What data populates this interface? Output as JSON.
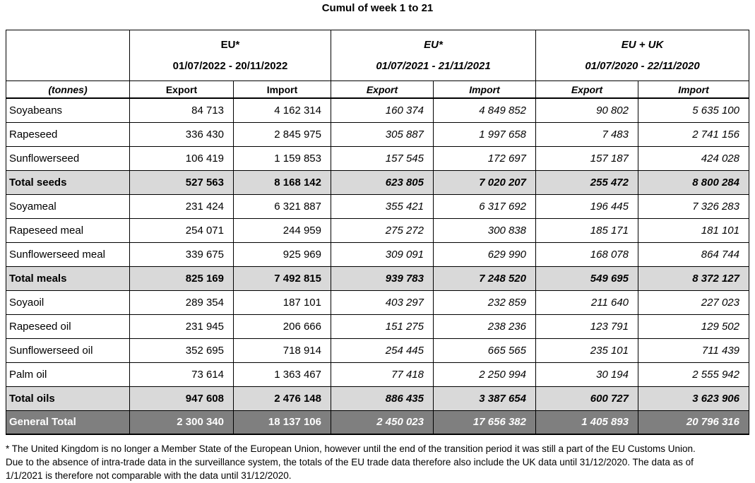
{
  "title": "Cumul of week 1 to 21",
  "unit_label": "(tonnes)",
  "colors": {
    "subtotal_row_bg": "#d9d9d9",
    "grand_total_row_bg": "#7f7f7f",
    "grand_total_text": "#ffffff",
    "border": "#000000"
  },
  "table": {
    "groups": [
      {
        "name": "EU*",
        "period": "01/07/2022 - 20/11/2022"
      },
      {
        "name": "EU*",
        "period": "01/07/2021 - 21/11/2021"
      },
      {
        "name": "EU + UK",
        "period": "01/07/2020 - 22/11/2020"
      }
    ],
    "col_headers": [
      "Export",
      "Import"
    ],
    "rows": [
      {
        "label": "Soyabeans",
        "type": "data",
        "values": [
          "84 713",
          "4 162 314",
          "160 374",
          "4 849 852",
          "90 802",
          "5 635 100"
        ]
      },
      {
        "label": "Rapeseed",
        "type": "data",
        "values": [
          "336 430",
          "2 845 975",
          "305 887",
          "1 997 658",
          "7 483",
          "2 741 156"
        ]
      },
      {
        "label": "Sunflowerseed",
        "type": "data",
        "values": [
          "106 419",
          "1 159 853",
          "157 545",
          "172 697",
          "157 187",
          "424 028"
        ]
      },
      {
        "label": "Total seeds",
        "type": "subtotal",
        "values": [
          "527 563",
          "8 168 142",
          "623 805",
          "7 020 207",
          "255 472",
          "8 800 284"
        ]
      },
      {
        "label": "Soyameal",
        "type": "data",
        "values": [
          "231 424",
          "6 321 887",
          "355 421",
          "6 317 692",
          "196 445",
          "7 326 283"
        ]
      },
      {
        "label": "Rapeseed meal",
        "type": "data",
        "values": [
          "254 071",
          "244 959",
          "275 272",
          "300 838",
          "185 171",
          "181 101"
        ]
      },
      {
        "label": "Sunflowerseed meal",
        "type": "data",
        "values": [
          "339 675",
          "925 969",
          "309 091",
          "629 990",
          "168 078",
          "864 744"
        ]
      },
      {
        "label": "Total meals",
        "type": "subtotal",
        "values": [
          "825 169",
          "7 492 815",
          "939 783",
          "7 248 520",
          "549 695",
          "8 372 127"
        ]
      },
      {
        "label": "Soyaoil",
        "type": "data",
        "values": [
          "289 354",
          "187 101",
          "403 297",
          "232 859",
          "211 640",
          "227 023"
        ]
      },
      {
        "label": "Rapeseed oil",
        "type": "data",
        "values": [
          "231 945",
          "206 666",
          "151 275",
          "238 236",
          "123 791",
          "129 502"
        ]
      },
      {
        "label": "Sunflowerseed oil",
        "type": "data",
        "values": [
          "352 695",
          "718 914",
          "254 445",
          "665 565",
          "235 101",
          "711 439"
        ]
      },
      {
        "label": "Palm oil",
        "type": "data",
        "values": [
          "73 614",
          "1 363 467",
          "77 418",
          "2 250 994",
          "30 194",
          "2 555 942"
        ]
      },
      {
        "label": "Total oils",
        "type": "subtotal",
        "values": [
          "947 608",
          "2 476 148",
          "886 435",
          "3 387 654",
          "600 727",
          "3 623 906"
        ]
      },
      {
        "label": "General Total",
        "type": "grandtotal",
        "values": [
          "2 300 340",
          "18 137 106",
          "2 450 023",
          "17 656 382",
          "1 405 893",
          "20 796 316"
        ]
      }
    ]
  },
  "footnote": {
    "lines": [
      "* The United Kingdom is no longer a Member State of the European Union, however until the end of the transition period it was still a part of the EU Customs Union.",
      "Due to the absence of intra-trade data in the surveillance system, the totals of the EU trade data  therefore also include the UK data until 31/12/2020. The data as of",
      "1/1/2021 is therefore not comparable with the data until 31/12/2020."
    ]
  }
}
